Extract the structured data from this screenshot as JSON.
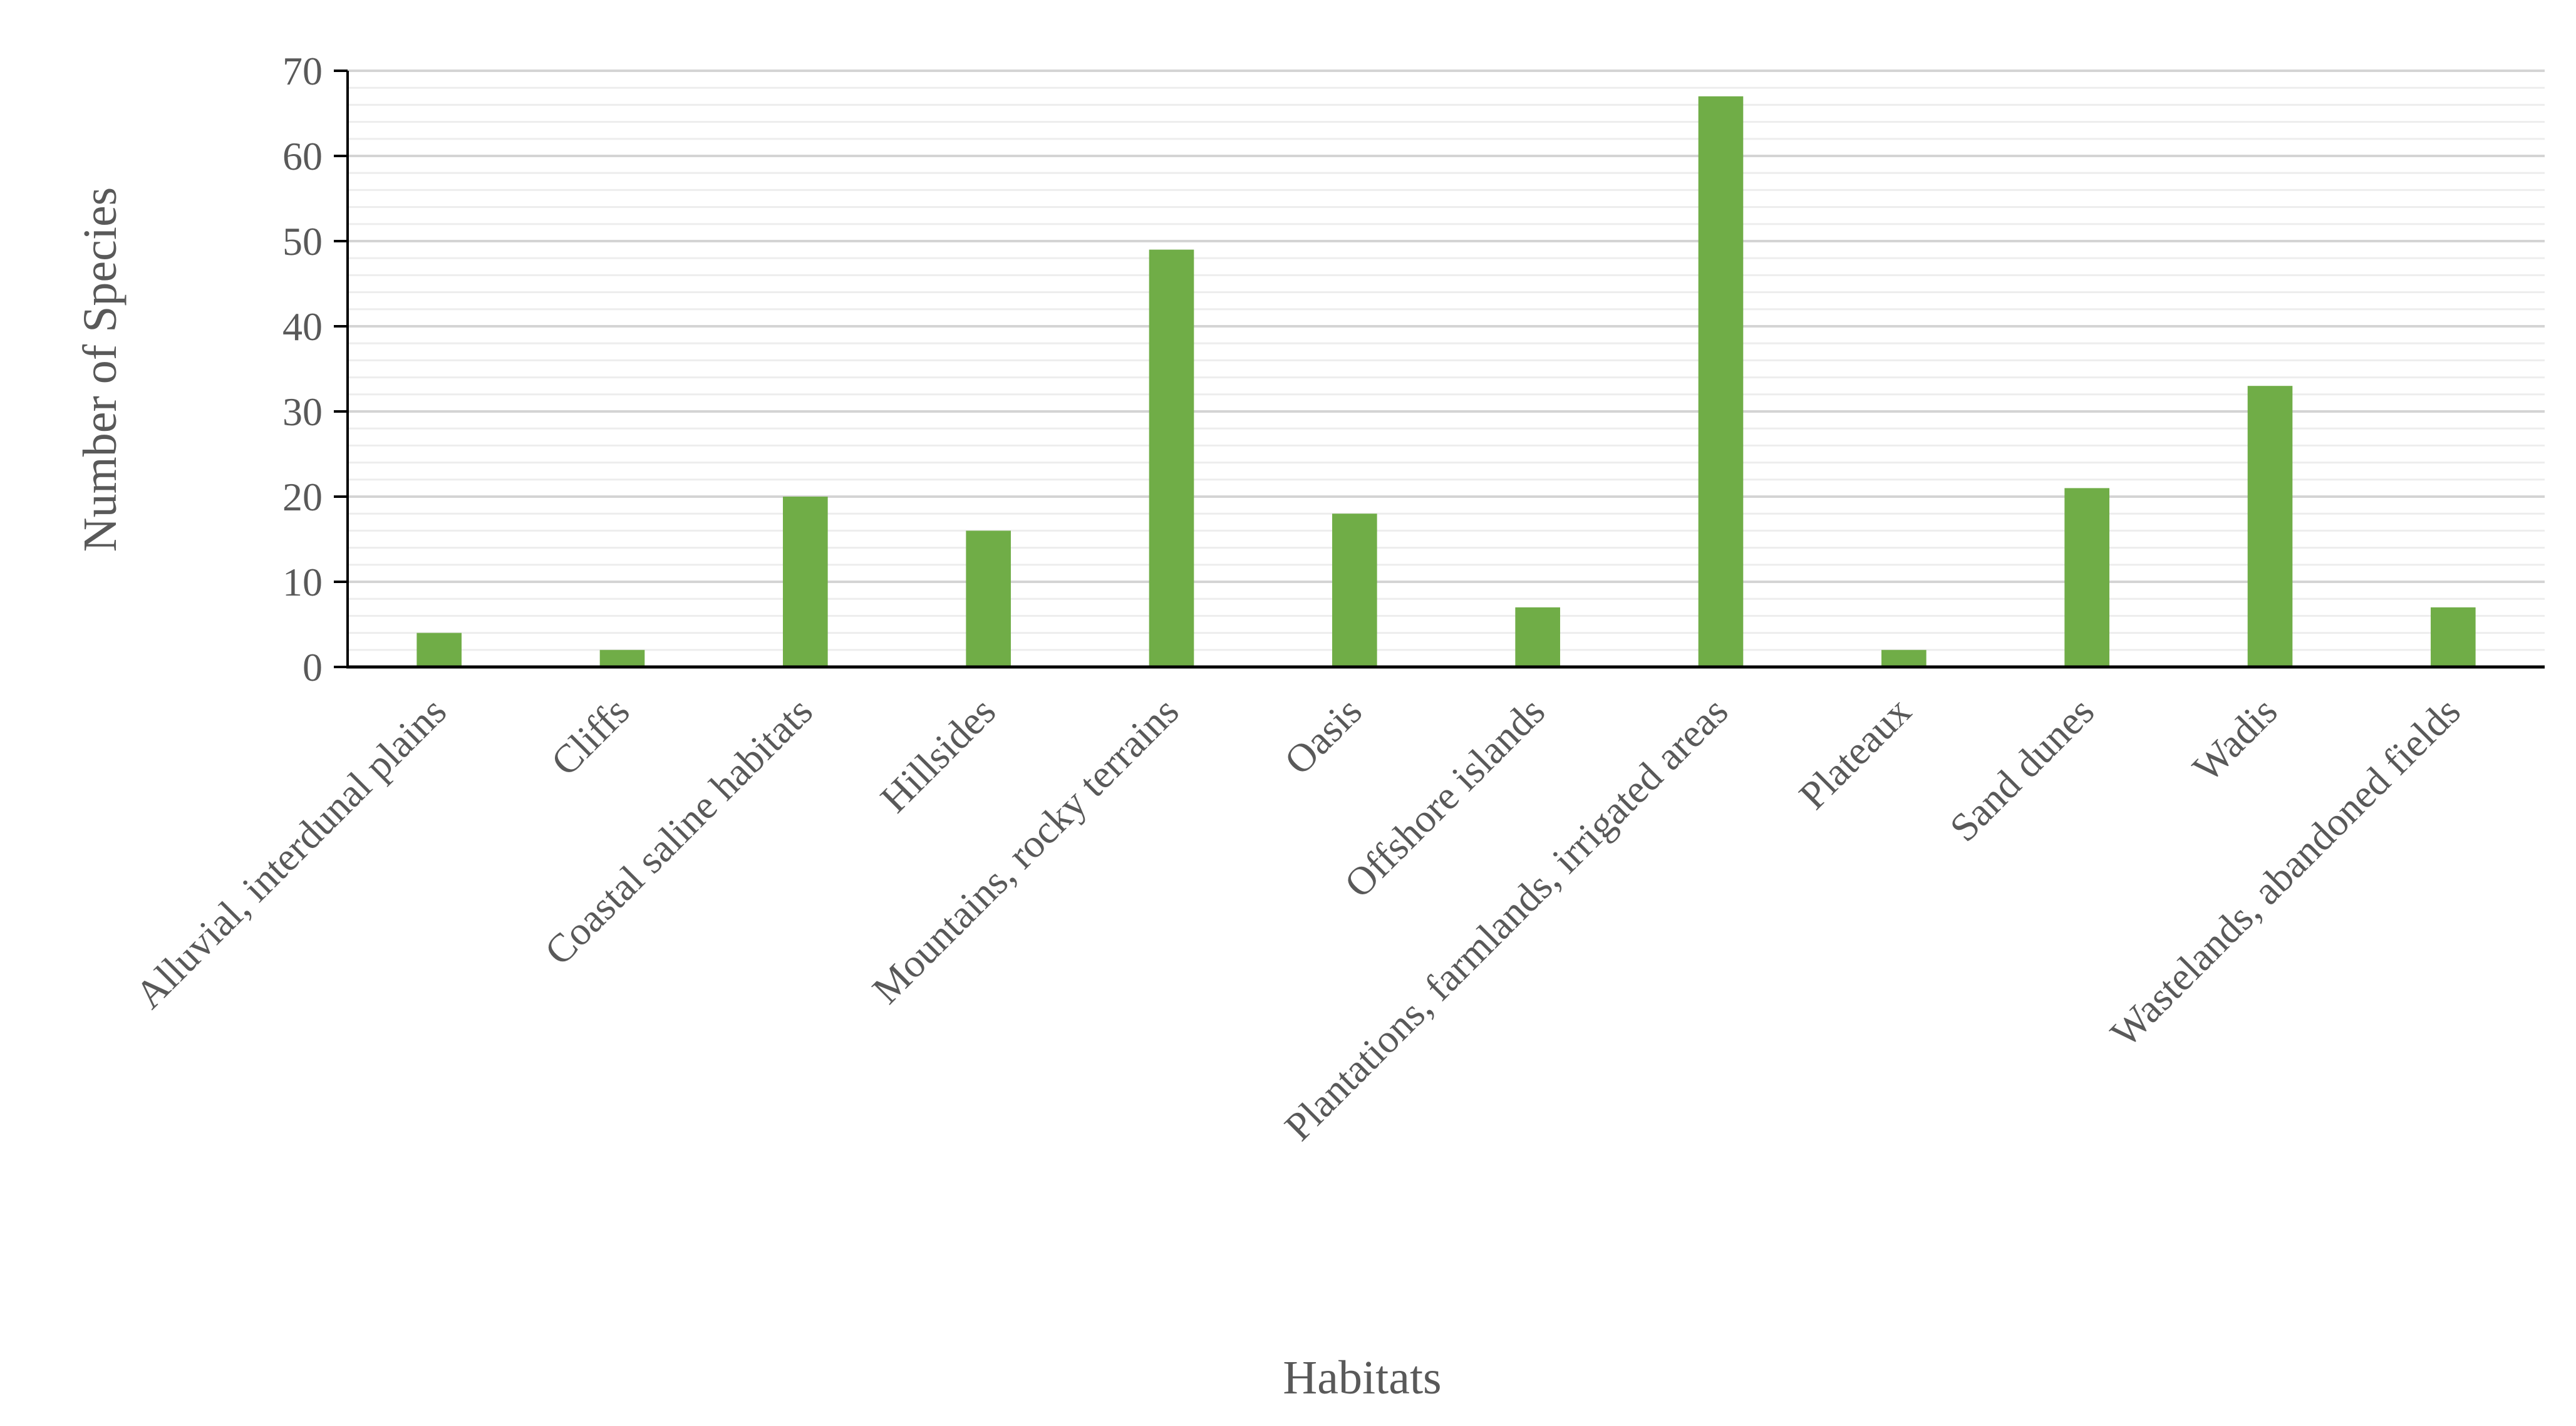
{
  "chart_data": {
    "type": "bar",
    "xlabel": "Habitats",
    "ylabel": "Number of Species",
    "ylim": [
      0,
      70
    ],
    "y_major_step": 10,
    "y_minor_step": 2,
    "grid": true,
    "legend": "none",
    "bar_color": "#70AD47",
    "categories": [
      "Alluvial, interdunal plains",
      "Cliffs",
      "Coastal saline habitats",
      "Hillsides",
      "Mountains, rocky terrains",
      "Oasis",
      "Offshore islands",
      "Plantations, farmlands, irrigated areas",
      "Plateaux",
      "Sand dunes",
      "Wadis",
      "Wastelands, abandoned fields"
    ],
    "values": [
      4,
      2,
      20,
      16,
      49,
      18,
      7,
      67,
      2,
      21,
      33,
      7
    ]
  }
}
